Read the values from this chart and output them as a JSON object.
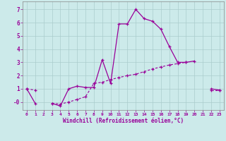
{
  "xlabel": "Windchill (Refroidissement éolien,°C)",
  "x_values": [
    0,
    1,
    2,
    3,
    4,
    5,
    6,
    7,
    8,
    9,
    10,
    11,
    12,
    13,
    14,
    15,
    16,
    17,
    18,
    19,
    20,
    21,
    22,
    23
  ],
  "line1_y": [
    1.0,
    -0.1,
    null,
    -0.1,
    -0.3,
    1.0,
    1.2,
    1.1,
    1.1,
    3.2,
    1.4,
    5.9,
    5.9,
    7.0,
    6.3,
    6.1,
    5.5,
    4.2,
    3.0,
    3.0,
    3.1,
    null,
    1.0,
    0.9
  ],
  "line2_y": [
    1.0,
    0.9,
    null,
    -0.1,
    -0.15,
    0.0,
    0.2,
    0.4,
    1.4,
    1.5,
    1.7,
    1.85,
    2.0,
    2.1,
    2.3,
    2.5,
    2.65,
    2.8,
    2.9,
    3.0,
    null,
    null,
    0.9,
    0.9
  ],
  "background_color": "#cceaea",
  "grid_color": "#aacccc",
  "line_color": "#990099",
  "ylim": [
    -0.6,
    7.6
  ],
  "xlim": [
    -0.5,
    23.5
  ],
  "yticks": [
    0,
    1,
    2,
    3,
    4,
    5,
    6,
    7
  ],
  "ytick_labels": [
    "-0",
    "1",
    "2",
    "3",
    "4",
    "5",
    "6",
    "7"
  ],
  "xticks": [
    0,
    1,
    2,
    3,
    4,
    5,
    6,
    7,
    8,
    9,
    10,
    11,
    12,
    13,
    14,
    15,
    16,
    17,
    18,
    19,
    20,
    21,
    22,
    23
  ],
  "xtick_labels": [
    "0",
    "1",
    "2",
    "3",
    "4",
    "5",
    "6",
    "7",
    "8",
    "9",
    "10",
    "11",
    "12",
    "13",
    "14",
    "15",
    "16",
    "17",
    "18",
    "19",
    "20",
    "21",
    "22",
    "23"
  ]
}
